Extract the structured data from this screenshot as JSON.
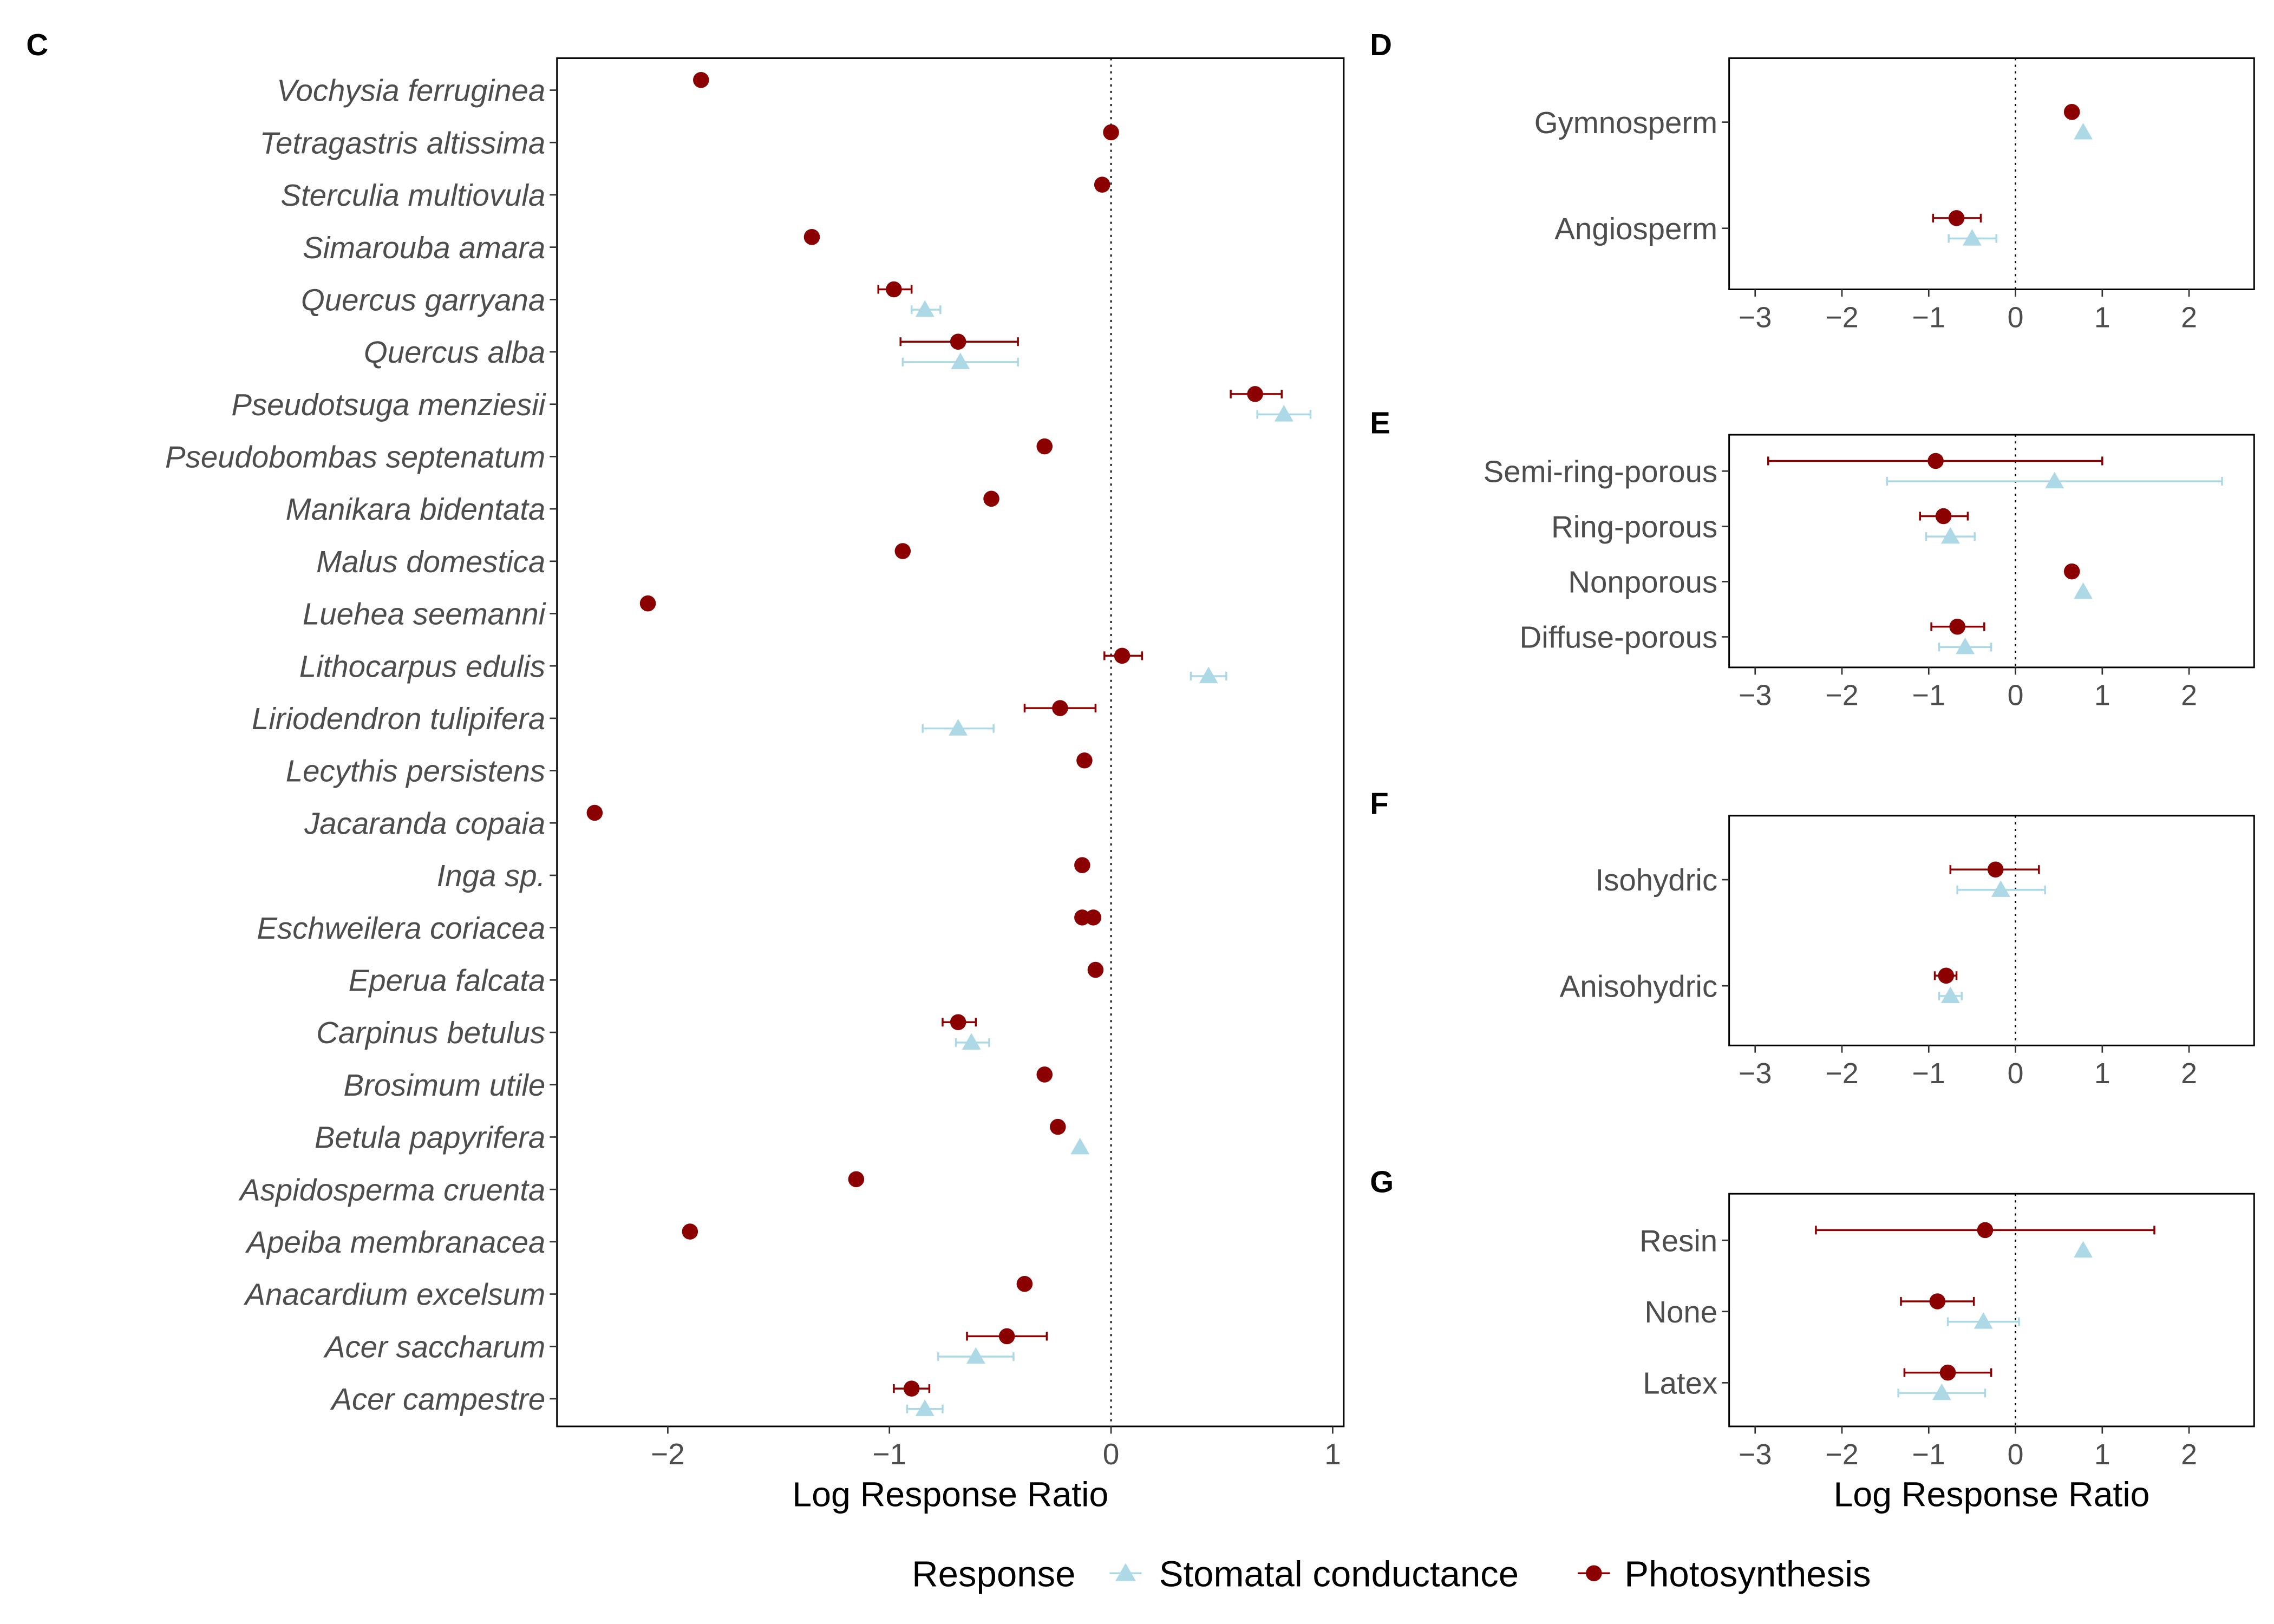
{
  "colors": {
    "photosynthesis": "#8B0000",
    "stomatal": "#ADD8E6",
    "axis_text": "#4D4D4D",
    "axis_line": "#000000"
  },
  "legend": {
    "title": "Response",
    "items": [
      {
        "label": "Stomatal conductance",
        "shape": "triangle",
        "color": "#ADD8E6"
      },
      {
        "label": "Photosynthesis",
        "shape": "circle",
        "color": "#8B0000"
      }
    ]
  },
  "chart_data": [
    {
      "panel": "C",
      "type": "scatter",
      "xlabel": "Log Response Ratio",
      "ylabel": "",
      "xlim": [
        -2.5,
        1.05
      ],
      "xticks": [
        -2,
        -1,
        0,
        1
      ],
      "reference_line": 0,
      "italic_labels": true,
      "categories": [
        "Vochysia ferruginea",
        "Tetragastris altissima",
        "Sterculia multiovula",
        "Simarouba amara",
        "Quercus garryana",
        "Quercus alba",
        "Pseudotsuga menziesii",
        "Pseudobombas septenatum",
        "Manikara bidentata",
        "Malus domestica",
        "Luehea seemanni",
        "Lithocarpus edulis",
        "Liriodendron tulipifera",
        "Lecythis persistens",
        "Jacaranda copaia",
        "Inga sp.",
        "Eschweilera coriacea",
        "Eperua falcata",
        "Carpinus betulus",
        "Brosimum utile",
        "Betula papyrifera",
        "Aspidosperma cruenta",
        "Apeiba membranacea",
        "Anacardium excelsum",
        "Acer saccharum",
        "Acer campestre"
      ],
      "series": [
        {
          "name": "Photosynthesis",
          "marker": "circle",
          "points": [
            {
              "category": "Vochysia ferruginea",
              "value": -1.85
            },
            {
              "category": "Tetragastris altissima",
              "value": 0.0
            },
            {
              "category": "Sterculia multiovula",
              "value": -0.04
            },
            {
              "category": "Simarouba amara",
              "value": -1.35
            },
            {
              "category": "Quercus garryana",
              "value": -0.98,
              "lo": -1.05,
              "hi": -0.9
            },
            {
              "category": "Quercus alba",
              "value": -0.69,
              "lo": -0.95,
              "hi": -0.42
            },
            {
              "category": "Pseudotsuga menziesii",
              "value": 0.65,
              "lo": 0.54,
              "hi": 0.77
            },
            {
              "category": "Pseudobombas septenatum",
              "value": -0.3
            },
            {
              "category": "Manikara bidentata",
              "value": -0.54
            },
            {
              "category": "Malus domestica",
              "value": -0.94
            },
            {
              "category": "Luehea seemanni",
              "value": -2.09
            },
            {
              "category": "Lithocarpus edulis",
              "value": 0.05,
              "lo": -0.03,
              "hi": 0.14
            },
            {
              "category": "Liriodendron tulipifera",
              "value": -0.23,
              "lo": -0.39,
              "hi": -0.07
            },
            {
              "category": "Lecythis persistens",
              "value": -0.12
            },
            {
              "category": "Jacaranda copaia",
              "value": -2.33
            },
            {
              "category": "Inga sp.",
              "value": -0.13
            },
            {
              "category": "Eschweilera coriacea",
              "value": -0.13
            },
            {
              "category": "Eschweilera coriacea",
              "value": -0.08
            },
            {
              "category": "Eperua falcata",
              "value": -0.07
            },
            {
              "category": "Carpinus betulus",
              "value": -0.69,
              "lo": -0.76,
              "hi": -0.61
            },
            {
              "category": "Brosimum utile",
              "value": -0.3
            },
            {
              "category": "Betula papyrifera",
              "value": -0.24
            },
            {
              "category": "Aspidosperma cruenta",
              "value": -1.15
            },
            {
              "category": "Apeiba membranacea",
              "value": -1.9
            },
            {
              "category": "Anacardium excelsum",
              "value": -0.39
            },
            {
              "category": "Acer saccharum",
              "value": -0.47,
              "lo": -0.65,
              "hi": -0.29
            },
            {
              "category": "Acer campestre",
              "value": -0.9,
              "lo": -0.98,
              "hi": -0.82
            }
          ]
        },
        {
          "name": "Stomatal conductance",
          "marker": "triangle",
          "points": [
            {
              "category": "Quercus garryana",
              "value": -0.84,
              "lo": -0.9,
              "hi": -0.77
            },
            {
              "category": "Quercus alba",
              "value": -0.68,
              "lo": -0.94,
              "hi": -0.42
            },
            {
              "category": "Pseudotsuga menziesii",
              "value": 0.78,
              "lo": 0.66,
              "hi": 0.9
            },
            {
              "category": "Lithocarpus edulis",
              "value": 0.44,
              "lo": 0.36,
              "hi": 0.52
            },
            {
              "category": "Liriodendron tulipifera",
              "value": -0.69,
              "lo": -0.85,
              "hi": -0.53
            },
            {
              "category": "Carpinus betulus",
              "value": -0.63,
              "lo": -0.7,
              "hi": -0.55
            },
            {
              "category": "Betula papyrifera",
              "value": -0.14
            },
            {
              "category": "Acer saccharum",
              "value": -0.61,
              "lo": -0.78,
              "hi": -0.44
            },
            {
              "category": "Acer campestre",
              "value": -0.84,
              "lo": -0.92,
              "hi": -0.76
            }
          ]
        }
      ]
    },
    {
      "panel": "D",
      "type": "scatter",
      "xlabel": "",
      "xlim": [
        -3.3,
        2.75
      ],
      "xticks": [
        -3,
        -2,
        -1,
        0,
        1,
        2
      ],
      "reference_line": 0,
      "categories": [
        "Gymnosperm",
        "Angiosperm"
      ],
      "series": [
        {
          "name": "Photosynthesis",
          "marker": "circle",
          "points": [
            {
              "category": "Gymnosperm",
              "value": 0.65
            },
            {
              "category": "Angiosperm",
              "value": -0.68,
              "lo": -0.95,
              "hi": -0.4
            }
          ]
        },
        {
          "name": "Stomatal conductance",
          "marker": "triangle",
          "points": [
            {
              "category": "Gymnosperm",
              "value": 0.78
            },
            {
              "category": "Angiosperm",
              "value": -0.5,
              "lo": -0.77,
              "hi": -0.22
            }
          ]
        }
      ]
    },
    {
      "panel": "E",
      "type": "scatter",
      "xlabel": "",
      "xlim": [
        -3.3,
        2.75
      ],
      "xticks": [
        -3,
        -2,
        -1,
        0,
        1,
        2
      ],
      "reference_line": 0,
      "categories": [
        "Semi-ring-porous",
        "Ring-porous",
        "Nonporous",
        "Diffuse-porous"
      ],
      "series": [
        {
          "name": "Photosynthesis",
          "marker": "circle",
          "points": [
            {
              "category": "Semi-ring-porous",
              "value": -0.92,
              "lo": -2.85,
              "hi": 1.0
            },
            {
              "category": "Ring-porous",
              "value": -0.83,
              "lo": -1.1,
              "hi": -0.55
            },
            {
              "category": "Nonporous",
              "value": 0.65
            },
            {
              "category": "Diffuse-porous",
              "value": -0.67,
              "lo": -0.97,
              "hi": -0.36
            }
          ]
        },
        {
          "name": "Stomatal conductance",
          "marker": "triangle",
          "points": [
            {
              "category": "Semi-ring-porous",
              "value": 0.45,
              "lo": -1.48,
              "hi": 2.38
            },
            {
              "category": "Ring-porous",
              "value": -0.75,
              "lo": -1.03,
              "hi": -0.47
            },
            {
              "category": "Nonporous",
              "value": 0.78
            },
            {
              "category": "Diffuse-porous",
              "value": -0.58,
              "lo": -0.88,
              "hi": -0.28
            }
          ]
        }
      ]
    },
    {
      "panel": "F",
      "type": "scatter",
      "xlabel": "",
      "xlim": [
        -3.3,
        2.75
      ],
      "xticks": [
        -3,
        -2,
        -1,
        0,
        1,
        2
      ],
      "reference_line": 0,
      "categories": [
        "Isohydric",
        "Anisohydric"
      ],
      "series": [
        {
          "name": "Photosynthesis",
          "marker": "circle",
          "points": [
            {
              "category": "Isohydric",
              "value": -0.23,
              "lo": -0.75,
              "hi": 0.27
            },
            {
              "category": "Anisohydric",
              "value": -0.8,
              "lo": -0.93,
              "hi": -0.68
            }
          ]
        },
        {
          "name": "Stomatal conductance",
          "marker": "triangle",
          "points": [
            {
              "category": "Isohydric",
              "value": -0.17,
              "lo": -0.67,
              "hi": 0.34
            },
            {
              "category": "Anisohydric",
              "value": -0.75,
              "lo": -0.88,
              "hi": -0.62
            }
          ]
        }
      ]
    },
    {
      "panel": "G",
      "type": "scatter",
      "xlabel": "Log Response Ratio",
      "xlim": [
        -3.3,
        2.75
      ],
      "xticks": [
        -3,
        -2,
        -1,
        0,
        1,
        2
      ],
      "reference_line": 0,
      "categories": [
        "Resin",
        "None",
        "Latex"
      ],
      "series": [
        {
          "name": "Photosynthesis",
          "marker": "circle",
          "points": [
            {
              "category": "Resin",
              "value": -0.35,
              "lo": -2.3,
              "hi": 1.6
            },
            {
              "category": "None",
              "value": -0.9,
              "lo": -1.32,
              "hi": -0.48
            },
            {
              "category": "Latex",
              "value": -0.78,
              "lo": -1.28,
              "hi": -0.28
            }
          ]
        },
        {
          "name": "Stomatal conductance",
          "marker": "triangle",
          "points": [
            {
              "category": "Resin",
              "value": 0.78
            },
            {
              "category": "None",
              "value": -0.37,
              "lo": -0.78,
              "hi": 0.04
            },
            {
              "category": "Latex",
              "value": -0.85,
              "lo": -1.35,
              "hi": -0.35
            }
          ]
        }
      ]
    }
  ]
}
